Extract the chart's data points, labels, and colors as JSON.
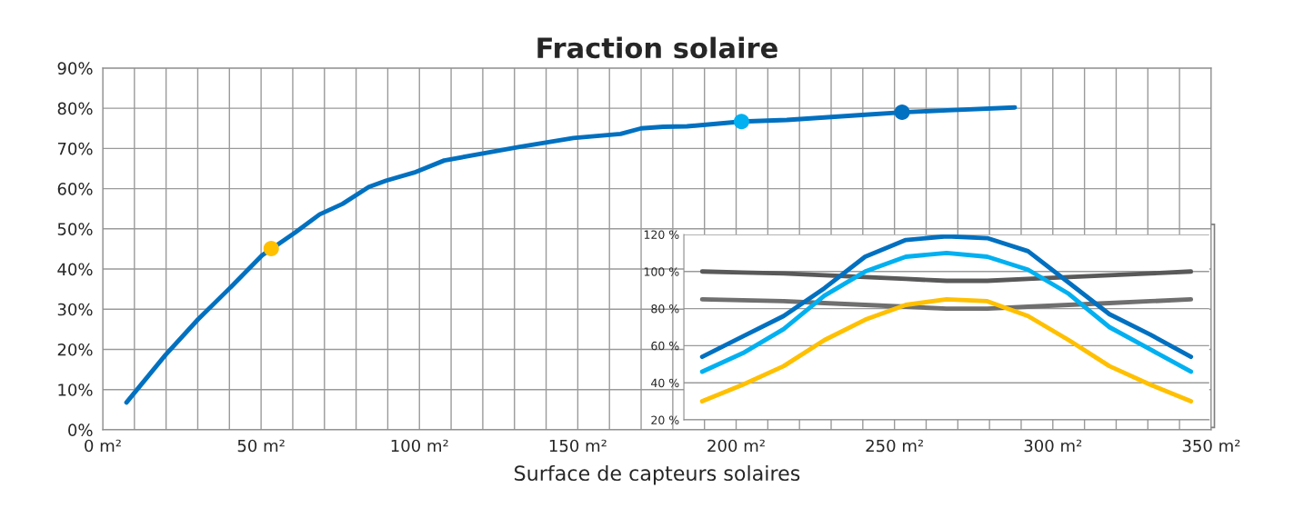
{
  "chart_data": [
    {
      "type": "line",
      "title": "Fraction solaire",
      "xlabel": "Surface de capteurs solaires",
      "xlim": [
        0,
        350
      ],
      "ylim": [
        0,
        90
      ],
      "xticks": [
        {
          "value": 0,
          "label": "0 m²"
        },
        {
          "value": 10,
          "label": null
        },
        {
          "value": 20,
          "label": null
        },
        {
          "value": 30,
          "label": null
        },
        {
          "value": 40,
          "label": null
        },
        {
          "value": 50,
          "label": "50 m²"
        },
        {
          "value": 60,
          "label": null
        },
        {
          "value": 70,
          "label": null
        },
        {
          "value": 80,
          "label": null
        },
        {
          "value": 90,
          "label": null
        },
        {
          "value": 100,
          "label": "100 m²"
        },
        {
          "value": 110,
          "label": null
        },
        {
          "value": 120,
          "label": null
        },
        {
          "value": 130,
          "label": null
        },
        {
          "value": 140,
          "label": null
        },
        {
          "value": 150,
          "label": "150 m²"
        },
        {
          "value": 160,
          "label": null
        },
        {
          "value": 170,
          "label": null
        },
        {
          "value": 180,
          "label": null
        },
        {
          "value": 190,
          "label": null
        },
        {
          "value": 200,
          "label": "200 m²"
        },
        {
          "value": 210,
          "label": null
        },
        {
          "value": 220,
          "label": null
        },
        {
          "value": 230,
          "label": null
        },
        {
          "value": 240,
          "label": null
        },
        {
          "value": 250,
          "label": "250 m²"
        },
        {
          "value": 260,
          "label": null
        },
        {
          "value": 270,
          "label": null
        },
        {
          "value": 280,
          "label": null
        },
        {
          "value": 290,
          "label": null
        },
        {
          "value": 300,
          "label": "300 m²"
        },
        {
          "value": 310,
          "label": null
        },
        {
          "value": 320,
          "label": null
        },
        {
          "value": 330,
          "label": null
        },
        {
          "value": 340,
          "label": null
        },
        {
          "value": 350,
          "label": "350 m²"
        }
      ],
      "yticks": [
        {
          "value": 0,
          "label": "0%"
        },
        {
          "value": 10,
          "label": "10%"
        },
        {
          "value": 20,
          "label": "20%"
        },
        {
          "value": 30,
          "label": "30%"
        },
        {
          "value": 40,
          "label": "40%"
        },
        {
          "value": 50,
          "label": "50%"
        },
        {
          "value": 60,
          "label": "60%"
        },
        {
          "value": 70,
          "label": "70%"
        },
        {
          "value": 80,
          "label": "80%"
        },
        {
          "value": 90,
          "label": "90%"
        }
      ],
      "grid": true,
      "series": [
        {
          "type": "line",
          "color": "#0070c0",
          "x": [
            7.5,
            19.8,
            30,
            39.8,
            50.3,
            60.8,
            68.5,
            75.7,
            84,
            89.5,
            98.3,
            107.8,
            120.4,
            131.6,
            148.6,
            163.5,
            170,
            177,
            184.5,
            201.7,
            216,
            240.8,
            252.4,
            266.8,
            288
          ],
          "values": [
            6.8,
            18.6,
            27.4,
            35,
            43.4,
            49.1,
            53.6,
            56.2,
            60.4,
            62,
            64,
            67,
            68.8,
            70.4,
            72.6,
            73.6,
            75,
            75.4,
            75.5,
            76.7,
            77.1,
            78.4,
            79,
            79.5,
            80.2
          ]
        },
        {
          "type": "scatter",
          "x": [
            53.2,
            201.7,
            252.4
          ],
          "values": [
            45.1,
            76.7,
            79
          ],
          "colors": [
            "#ffc000",
            "#00b0f0",
            "#0070c0"
          ]
        }
      ]
    },
    {
      "type": "line",
      "categories": [
        null,
        null,
        null,
        null,
        null,
        null,
        null,
        null,
        null,
        null,
        null,
        null,
        null
      ],
      "ylim": [
        20,
        120
      ],
      "yticks": [
        {
          "value": 20,
          "label": "20 %"
        },
        {
          "value": 40,
          "label": "40 %"
        },
        {
          "value": 60,
          "label": "60 %"
        },
        {
          "value": 80,
          "label": "80 %"
        },
        {
          "value": 100,
          "label": "100 %"
        },
        {
          "value": 120,
          "label": "120 %"
        }
      ],
      "grid": "y",
      "tick_labels": "y",
      "series": [
        {
          "color": "#595959",
          "values": [
            100,
            99.5,
            99,
            98,
            97,
            96,
            95,
            95,
            96,
            97,
            98,
            99,
            100
          ]
        },
        {
          "color": "#6f6f6f",
          "values": [
            85,
            84.5,
            84,
            83,
            82,
            81,
            80,
            80,
            81,
            82,
            83,
            84,
            85
          ]
        },
        {
          "color": "#0070c0",
          "values": [
            54,
            65,
            76,
            91,
            108,
            117,
            119,
            118,
            111,
            94,
            77,
            66,
            54
          ]
        },
        {
          "color": "#00b0f0",
          "values": [
            46,
            56,
            69,
            87,
            100,
            108,
            110,
            108,
            101,
            88,
            70,
            58,
            46
          ]
        },
        {
          "color": "#ffc000",
          "values": [
            30,
            39,
            49,
            63,
            74,
            82,
            85,
            84,
            76,
            63,
            49,
            39,
            30
          ]
        }
      ]
    }
  ]
}
